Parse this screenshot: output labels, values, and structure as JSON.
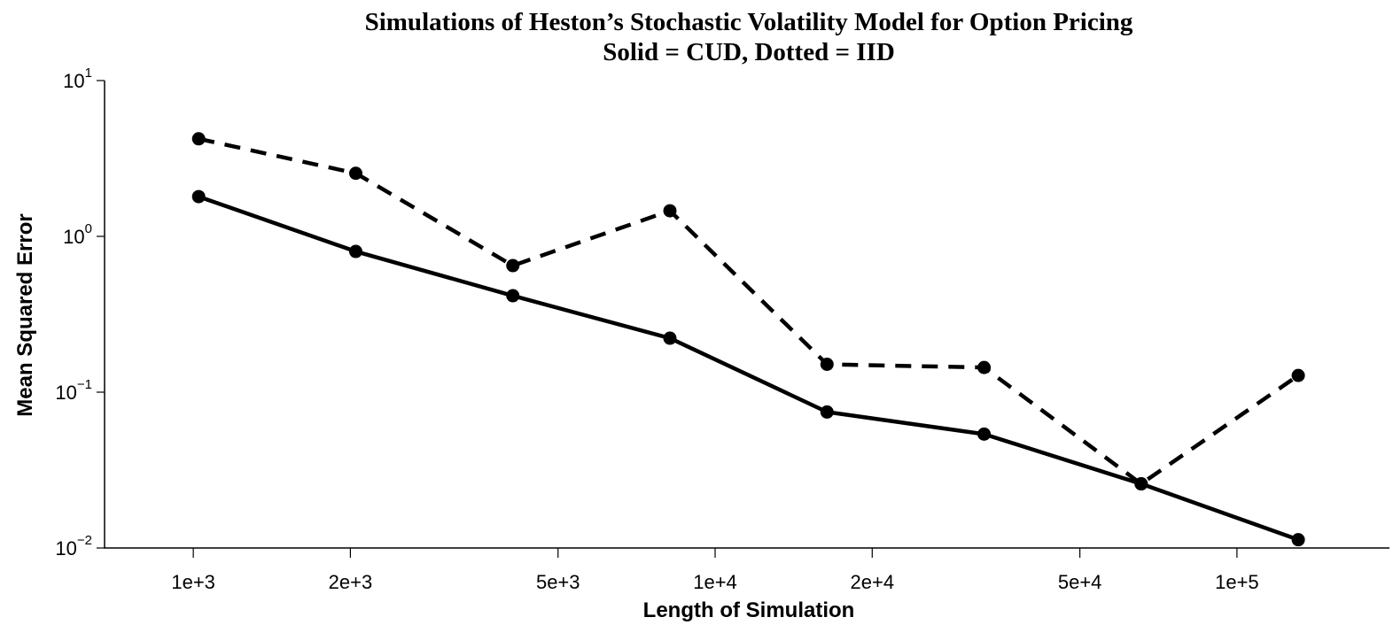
{
  "chart_data": {
    "type": "line",
    "title": "Simulations of Heston’s Stochastic Volatility Model for Option Pricing",
    "subtitle": "Solid = CUD, Dotted = IID",
    "xlabel": "Length of Simulation",
    "ylabel": "Mean Squared Error",
    "x": [
      1024,
      2048,
      4096,
      8192,
      16384,
      32768,
      65536,
      131072
    ],
    "series": [
      {
        "color": "#000000",
        "style": "solid",
        "values": [
          1.8,
          0.8,
          0.416,
          0.222,
          0.0746,
          0.0538,
          0.0258,
          0.0113
        ]
      },
      {
        "color": "#000000",
        "style": "dashed",
        "values": [
          4.23,
          2.54,
          0.649,
          1.46,
          0.151,
          0.144,
          0.0258,
          0.128
        ]
      }
    ],
    "xscale": "log",
    "yscale": "log",
    "xlim": [
      676,
      196000
    ],
    "ylim": [
      0.01,
      10
    ],
    "xticks": [
      {
        "value": 1000,
        "label": "1e+3"
      },
      {
        "value": 2000,
        "label": "2e+3"
      },
      {
        "value": 5000,
        "label": "5e+3"
      },
      {
        "value": 10000,
        "label": "1e+4"
      },
      {
        "value": 20000,
        "label": "2e+4"
      },
      {
        "value": 50000,
        "label": "5e+4"
      },
      {
        "value": 100000,
        "label": "1e+5"
      }
    ],
    "yticks": [
      {
        "value": 0.01,
        "label": "10",
        "exponent": "−2"
      },
      {
        "value": 0.1,
        "label": "10",
        "exponent": "−1"
      },
      {
        "value": 1,
        "label": "10",
        "exponent": "0"
      },
      {
        "value": 10,
        "label": "10",
        "exponent": "1"
      }
    ],
    "grid": false
  }
}
